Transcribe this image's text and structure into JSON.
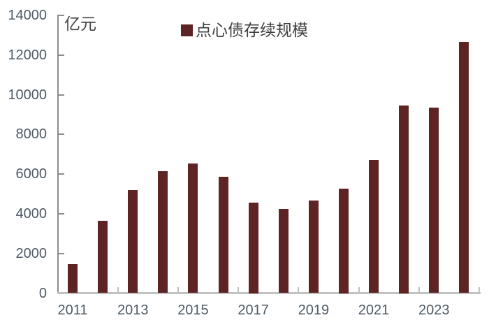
{
  "chart_data": {
    "type": "bar",
    "legend": "点心债存续规模",
    "unit": "亿元",
    "categories": [
      2011,
      2012,
      2013,
      2014,
      2015,
      2016,
      2017,
      2018,
      2019,
      2020,
      2021,
      2022,
      2023,
      2024
    ],
    "values": [
      1450,
      3650,
      5200,
      6150,
      6550,
      5850,
      4550,
      4250,
      4650,
      5250,
      6700,
      9450,
      9350,
      12650
    ],
    "x_tick_labels": [
      "2011",
      "2013",
      "2015",
      "2017",
      "2019",
      "2021",
      "2023"
    ],
    "y_ticks": [
      0,
      2000,
      4000,
      6000,
      8000,
      10000,
      12000,
      14000
    ],
    "ylim": [
      0,
      14000
    ],
    "legend_position": "top-center",
    "grid": false,
    "colors": {
      "bar": "#5e2424",
      "axis_text": "#4e5a66",
      "label_text": "#454545",
      "y_axis_line": "#8c8c8c",
      "x_axis_line": "#c2c2c2"
    }
  }
}
